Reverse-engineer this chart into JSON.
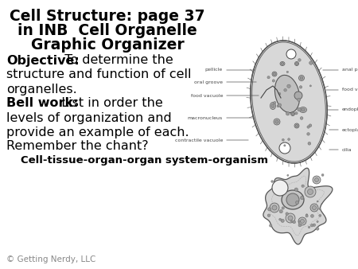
{
  "title_line1": "Cell Structure: page 37",
  "title_line2": "in INB  Cell Organelle",
  "title_line3": "Graphic Organizer",
  "objective_bold": "Objective:",
  "objective_rest": "  To determine the",
  "obj_line2": "structure and function of cell",
  "obj_line3": "organelles.",
  "bellwork_bold": "Bell work:",
  "bellwork_rest": "  List in order the",
  "bw_line2": "levels of organization and",
  "bw_line3": "provide an example of each.",
  "bw_line4": "Remember the chant?",
  "chant_text": "Cell-tissue-organ-organ system-organism",
  "copyright_text": "© Getting Nerdy, LLC",
  "bg_color": "#ffffff",
  "text_color": "#000000",
  "title_fontsize": 13.5,
  "body_fontsize": 11.5,
  "chant_fontsize": 9.5,
  "copyright_fontsize": 7.5,
  "fig_width": 4.5,
  "fig_height": 3.38,
  "dpi": 100
}
